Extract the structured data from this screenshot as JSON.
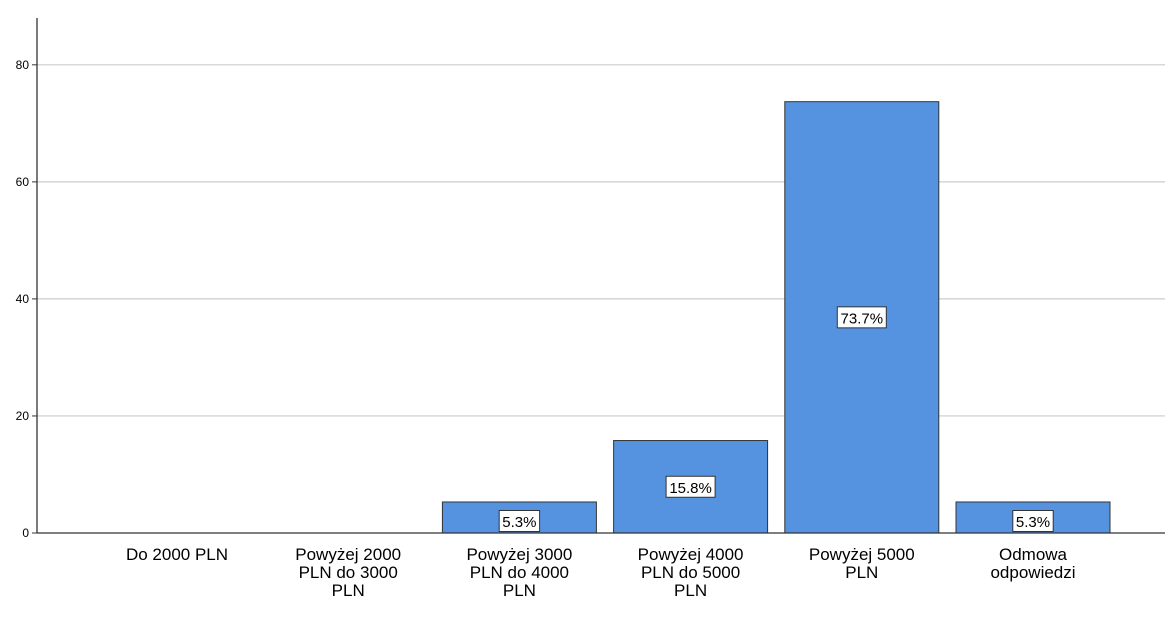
{
  "chart_data": {
    "type": "bar",
    "title": "",
    "xlabel": "",
    "ylabel": "",
    "categories": [
      [
        "Do 2000 PLN"
      ],
      [
        "Powyżej 2000",
        "PLN do 3000",
        "PLN"
      ],
      [
        "Powyżej 3000",
        "PLN do 4000",
        "PLN"
      ],
      [
        "Powyżej 4000",
        "PLN do 5000",
        "PLN"
      ],
      [
        "Powyżej 5000",
        "PLN"
      ],
      [
        "Odmowa",
        "odpowiedzi"
      ]
    ],
    "values": [
      0,
      0,
      5.3,
      15.8,
      73.7,
      5.3
    ],
    "data_labels": [
      "",
      "",
      "5.3%",
      "15.8%",
      "73.7%",
      "5.3%"
    ],
    "ylim": [
      0,
      88
    ],
    "yticks": [
      0,
      20,
      40,
      60,
      80
    ],
    "grid": true,
    "legend": "none",
    "colors": {
      "bar_fill": "#5592e0",
      "bar_stroke": "#333333",
      "grid": "#cccccc",
      "axis": "#333333",
      "text": "#000000",
      "label_box_fill": "#ffffff"
    }
  }
}
